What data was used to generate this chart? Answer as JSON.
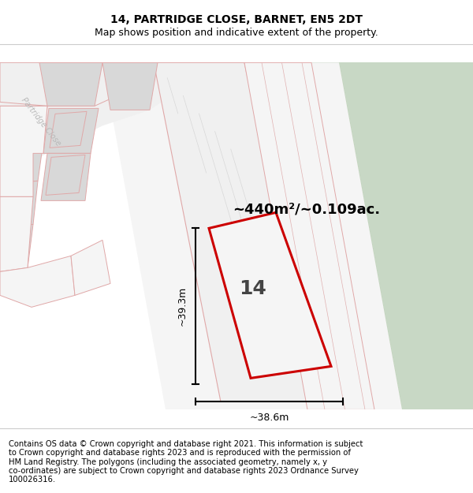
{
  "title": "14, PARTRIDGE CLOSE, BARNET, EN5 2DT",
  "subtitle": "Map shows position and indicative extent of the property.",
  "area_label": "~440m²/~0.109ac.",
  "width_label": "~38.6m",
  "height_label": "~39.3m",
  "plot_number": "14",
  "footer_lines": [
    "Contains OS data © Crown copyright and database right 2021. This information is subject",
    "to Crown copyright and database rights 2023 and is reproduced with the permission of",
    "HM Land Registry. The polygons (including the associated geometry, namely x, y",
    "co-ordinates) are subject to Crown copyright and database rights 2023 Ordnance Survey",
    "100026316."
  ],
  "bg_color": "#ffffff",
  "map_bg": "#f8f8f8",
  "road_bg": "#f0f0f0",
  "green_fill": "#c8d8c5",
  "green_light": "#dce8da",
  "block_gray": "#d8d8d8",
  "block_outline_pink": "#e0a8a8",
  "plot_bg": "#eeeeee",
  "plot_red": "#cc0000",
  "dim_lw": 1.5,
  "title_fontsize": 10,
  "subtitle_fontsize": 9,
  "footer_fontsize": 7.2,
  "area_fontsize": 13,
  "plot_num_fontsize": 18,
  "dim_fontsize": 9,
  "partridge_label_fontsize": 7
}
